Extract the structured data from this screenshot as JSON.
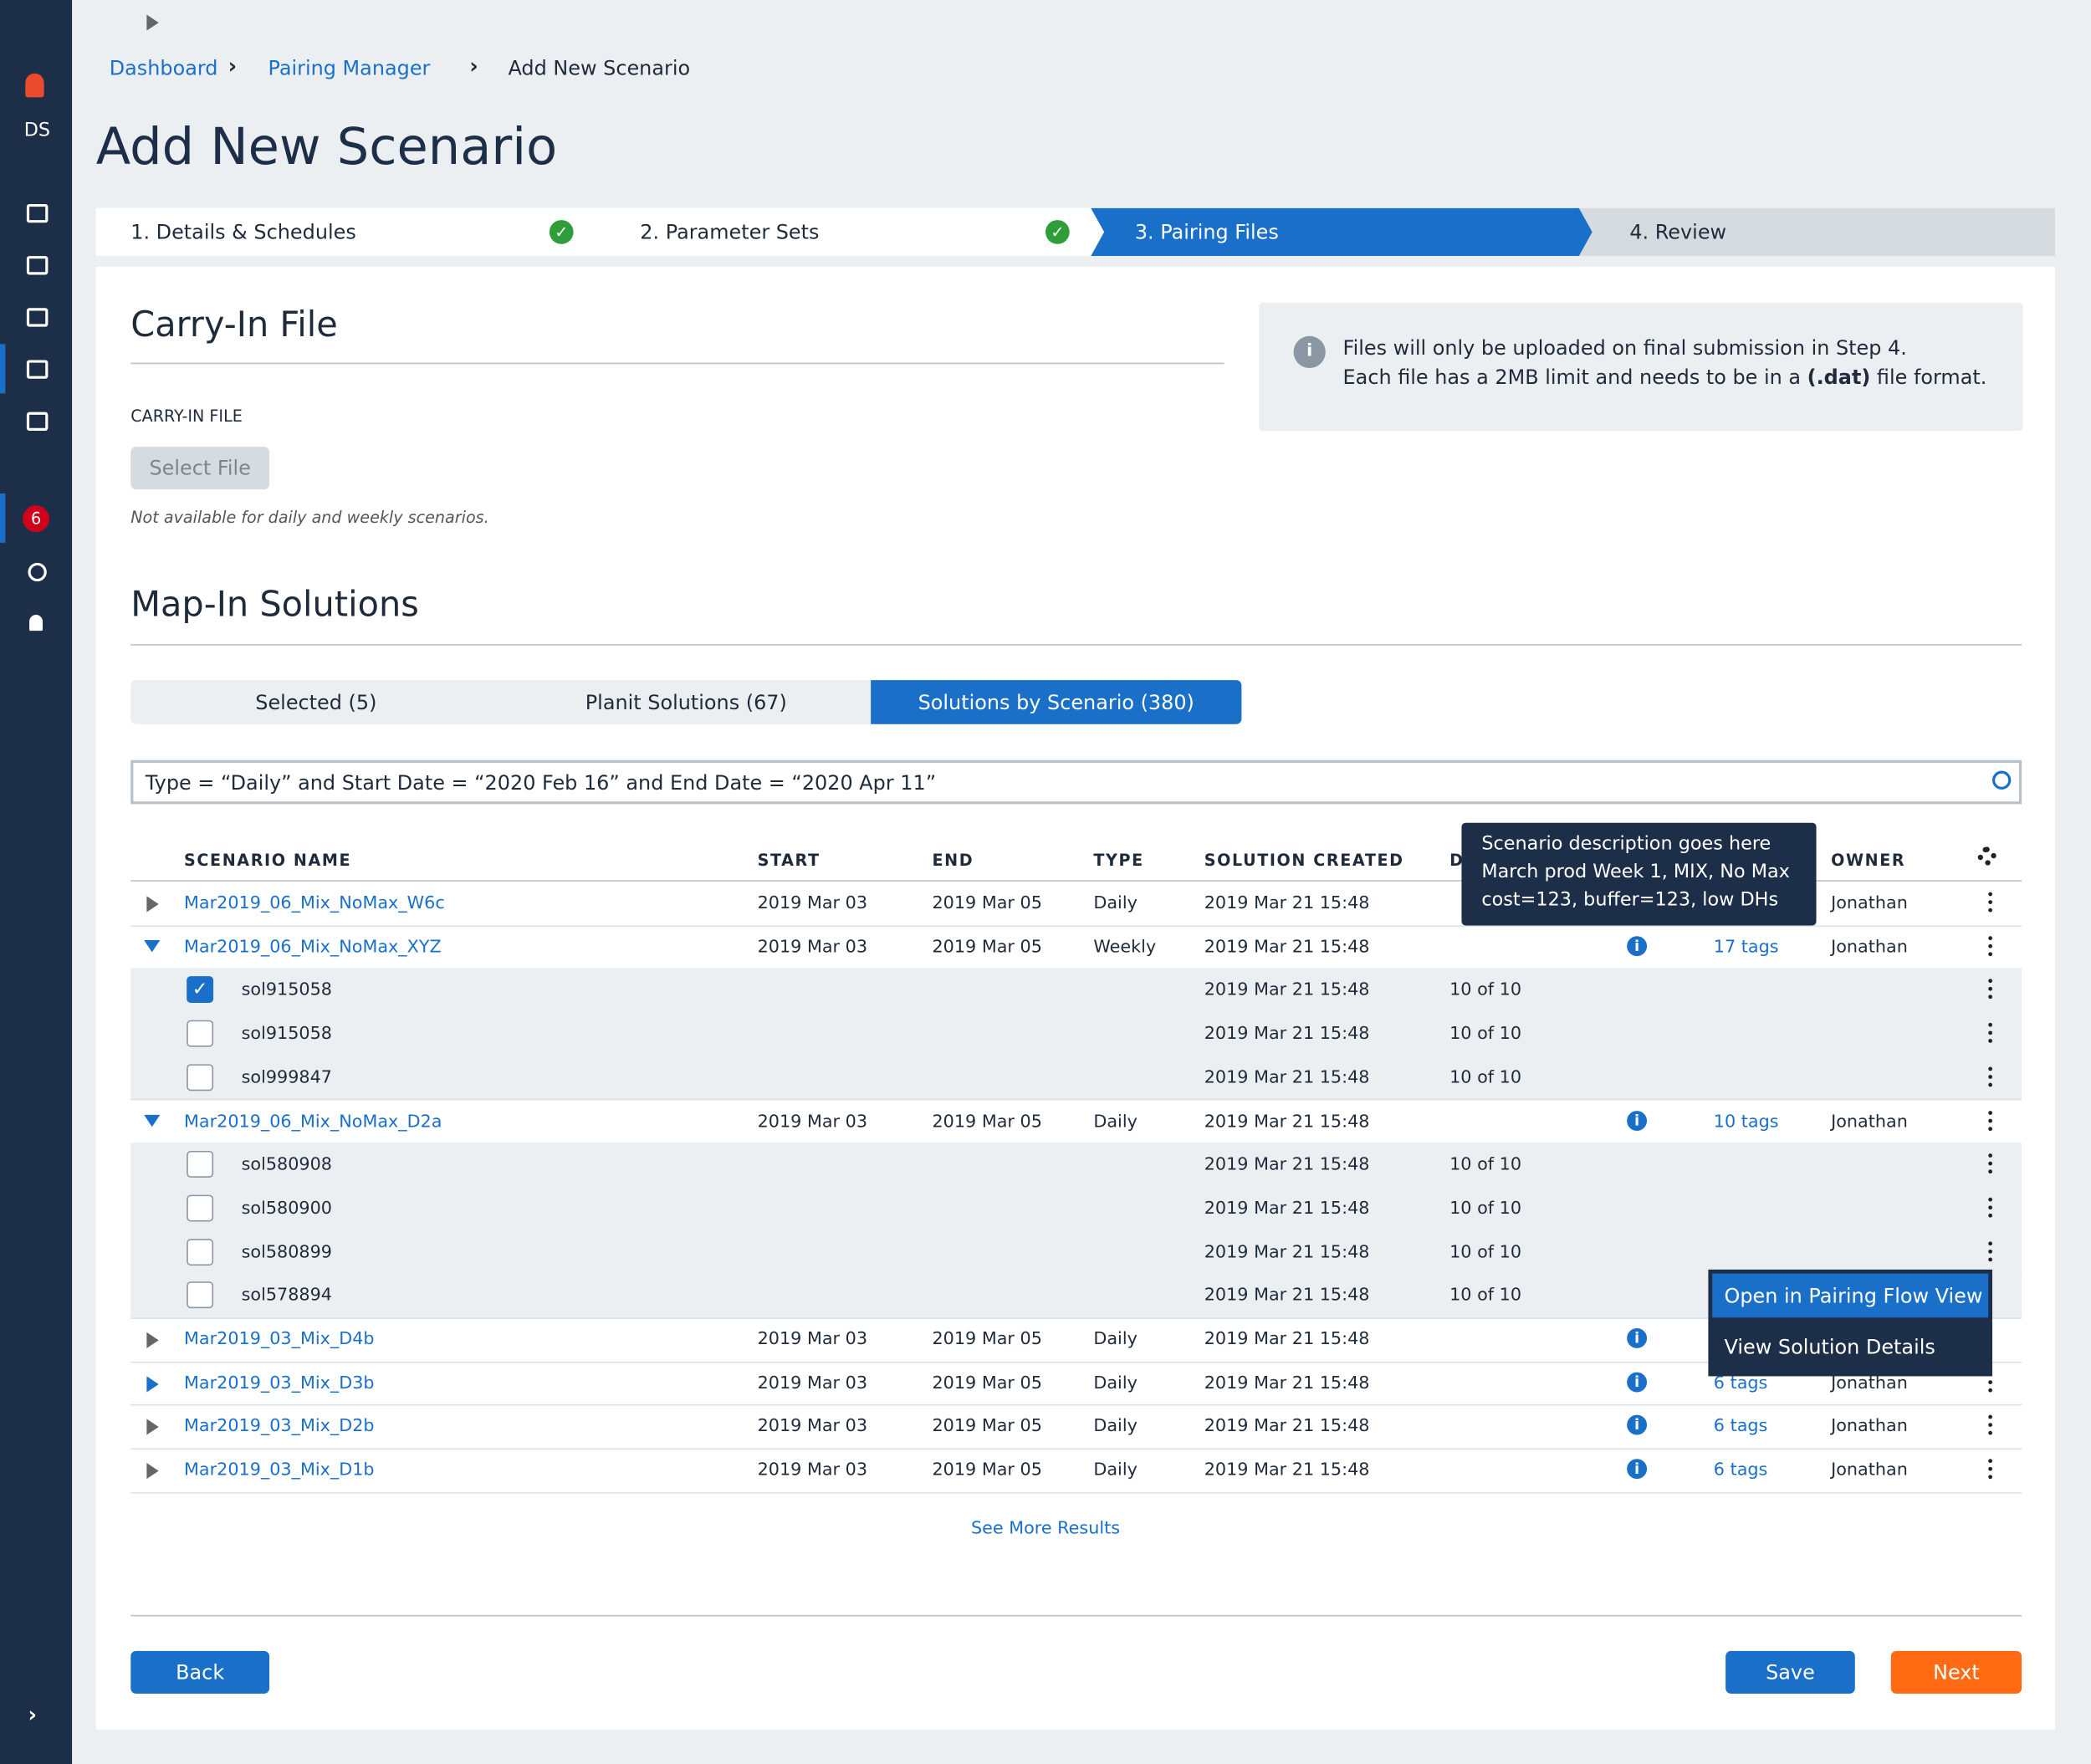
{
  "sidebar": {
    "logo": "DS",
    "badge": "6"
  },
  "breadcrumb": [
    "Dashboard",
    "Pairing Manager",
    "Add New Scenario"
  ],
  "title": "Add New Scenario",
  "steps": [
    "1. Details & Schedules",
    "2. Parameter Sets",
    "3. Pairing Files",
    "4. Review"
  ],
  "carry_in": {
    "heading": "Carry-In File",
    "label": "CARRY-IN FILE",
    "button": "Select File",
    "note": "Not available for daily and weekly scenarios."
  },
  "info": {
    "line1": "Files will only be uploaded on final submission in Step 4.",
    "line2": [
      "Each file has a 2MB limit and needs to be in a ",
      "(.dat)",
      " file format."
    ]
  },
  "map_in": {
    "heading": "Map-In Solutions",
    "tabs": [
      "Selected (5)",
      "Planit Solutions (67)",
      "Solutions by Scenario (380)"
    ],
    "search": "Type = “Daily” and Start Date = “2020 Feb 16” and End Date = “2020 Apr 11”"
  },
  "table": {
    "columns": [
      "SCENARIO NAME",
      "START",
      "END",
      "TYPE",
      "SOLUTION CREATED",
      "D",
      "OWNER"
    ],
    "rows": [
      {
        "name": "Mar2019_06_Mix_NoMax_W6c",
        "start": "2019 Mar 03",
        "end": "2019 Mar 05",
        "type": "Daily",
        "created": "2019 Mar 21 15:48",
        "owner": "Jonathan"
      },
      {
        "name": "Mar2019_06_Mix_NoMax_XYZ",
        "start": "2019 Mar 03",
        "end": "2019 Mar 05",
        "type": "Weekly",
        "created": "2019 Mar 21 15:48",
        "tags": "17 tags",
        "owner": "Jonathan",
        "solutions": [
          {
            "name": "sol915058",
            "checked": true,
            "created": "2019 Mar 21 15:48",
            "count": "10 of 10"
          },
          {
            "name": "sol915058",
            "checked": false,
            "created": "2019 Mar 21 15:48",
            "count": "10 of 10"
          },
          {
            "name": "sol999847",
            "checked": false,
            "created": "2019 Mar 21 15:48",
            "count": "10 of 10"
          }
        ]
      },
      {
        "name": "Mar2019_06_Mix_NoMax_D2a",
        "start": "2019 Mar 03",
        "end": "2019 Mar 05",
        "type": "Daily",
        "created": "2019 Mar 21 15:48",
        "tags": "10 tags",
        "owner": "Jonathan",
        "solutions": [
          {
            "name": "sol580908",
            "checked": false,
            "created": "2019 Mar 21 15:48",
            "count": "10 of 10"
          },
          {
            "name": "sol580900",
            "checked": false,
            "created": "2019 Mar 21 15:48",
            "count": "10 of 10"
          },
          {
            "name": "sol580899",
            "checked": false,
            "created": "2019 Mar 21 15:48",
            "count": "10 of 10"
          },
          {
            "name": "sol578894",
            "checked": false,
            "created": "2019 Mar 21 15:48",
            "count": "10 of 10"
          }
        ]
      },
      {
        "name": "Mar2019_03_Mix_D4b",
        "start": "2019 Mar 03",
        "end": "2019 Mar 05",
        "type": "Daily",
        "created": "2019 Mar 21 15:48"
      },
      {
        "name": "Mar2019_03_Mix_D3b",
        "start": "2019 Mar 03",
        "end": "2019 Mar 05",
        "type": "Daily",
        "created": "2019 Mar 21 15:48",
        "tags": "6 tags",
        "owner": "Jonathan"
      },
      {
        "name": "Mar2019_03_Mix_D2b",
        "start": "2019 Mar 03",
        "end": "2019 Mar 05",
        "type": "Daily",
        "created": "2019 Mar 21 15:48",
        "tags": "6 tags",
        "owner": "Jonathan"
      },
      {
        "name": "Mar2019_03_Mix_D1b",
        "start": "2019 Mar 03",
        "end": "2019 Mar 05",
        "type": "Daily",
        "created": "2019 Mar 21 15:48",
        "tags": "6 tags",
        "owner": "Jonathan"
      }
    ]
  },
  "tooltip": [
    "Scenario description goes here",
    "March prod Week 1, MIX, No Max",
    "cost=123, buffer=123, low DHs"
  ],
  "menu": [
    "Open in Pairing Flow View",
    "View Solution Details"
  ],
  "see_more": "See More Results",
  "buttons": {
    "back": "Back",
    "save": "Save",
    "next": "Next"
  }
}
